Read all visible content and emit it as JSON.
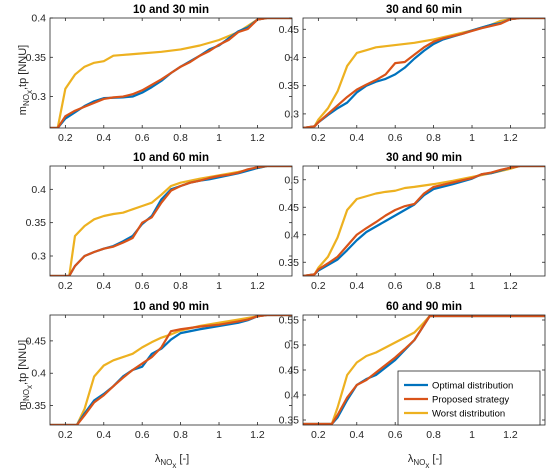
{
  "colors": {
    "optimal": "#0072BD",
    "proposed": "#D95319",
    "worst": "#EDB120"
  },
  "legend": {
    "placement": "bottom-right of panel 6",
    "entries": [
      {
        "key": "optimal",
        "label": "Optimal distribution"
      },
      {
        "key": "proposed",
        "label": "Proposed strategy"
      },
      {
        "key": "worst",
        "label": "Worst distribution"
      }
    ]
  },
  "ylabel": {
    "main": "m",
    "sub": "NO",
    "subsub": "x",
    "mid": ",tp",
    "unit": " [NNU]"
  },
  "xlabel": {
    "main": "λ",
    "sub": "NO",
    "subsub": "x",
    "unit": " [-]"
  },
  "chart_data": [
    {
      "type": "line",
      "title": "10 and 30 min",
      "xlim": [
        0.12,
        1.38
      ],
      "ylim": [
        0.26,
        0.4
      ],
      "xticks": [
        "0.2",
        "0.4",
        "0.6",
        "0.8",
        "1",
        "1.2"
      ],
      "xtick_values": [
        0.2,
        0.4,
        0.6,
        0.8,
        1,
        1.2
      ],
      "yticks": [
        "0.3",
        "0.35",
        "0.4"
      ],
      "ytick_values": [
        0.3,
        0.35,
        0.4
      ],
      "series": [
        {
          "key": "optimal",
          "x": [
            0.12,
            0.16,
            0.2,
            0.25,
            0.3,
            0.35,
            0.4,
            0.5,
            0.55,
            0.6,
            0.65,
            0.7,
            0.75,
            0.8,
            0.85,
            0.9,
            0.95,
            1.0,
            1.05,
            1.1,
            1.15,
            1.2,
            1.25,
            1.38
          ],
          "y": [
            0.26,
            0.26,
            0.272,
            0.28,
            0.288,
            0.294,
            0.298,
            0.299,
            0.3,
            0.305,
            0.312,
            0.32,
            0.33,
            0.338,
            0.345,
            0.352,
            0.36,
            0.365,
            0.374,
            0.383,
            0.388,
            0.398,
            0.4,
            0.4
          ]
        },
        {
          "key": "proposed",
          "x": [
            0.12,
            0.16,
            0.2,
            0.25,
            0.3,
            0.35,
            0.4,
            0.45,
            0.5,
            0.55,
            0.6,
            0.65,
            0.7,
            0.75,
            0.8,
            0.85,
            0.9,
            0.95,
            1.0,
            1.05,
            1.1,
            1.15,
            1.2,
            1.25,
            1.38
          ],
          "y": [
            0.26,
            0.26,
            0.275,
            0.282,
            0.287,
            0.292,
            0.297,
            0.299,
            0.3,
            0.303,
            0.308,
            0.315,
            0.322,
            0.33,
            0.338,
            0.344,
            0.352,
            0.358,
            0.366,
            0.372,
            0.382,
            0.386,
            0.398,
            0.4,
            0.4
          ]
        },
        {
          "key": "worst",
          "x": [
            0.12,
            0.16,
            0.2,
            0.25,
            0.3,
            0.35,
            0.4,
            0.45,
            0.5,
            0.6,
            0.7,
            0.8,
            0.9,
            1.0,
            1.1,
            1.2,
            1.25,
            1.38
          ],
          "y": [
            0.26,
            0.26,
            0.31,
            0.328,
            0.338,
            0.343,
            0.345,
            0.352,
            0.353,
            0.355,
            0.357,
            0.36,
            0.365,
            0.372,
            0.382,
            0.398,
            0.4,
            0.4
          ]
        }
      ]
    },
    {
      "type": "line",
      "title": "30 and 60 min",
      "xlim": [
        0.12,
        1.38
      ],
      "ylim": [
        0.275,
        0.47
      ],
      "xticks": [
        "0.2",
        "0.4",
        "0.6",
        "0.8",
        "1",
        "1.2"
      ],
      "xtick_values": [
        0.2,
        0.4,
        0.6,
        0.8,
        1,
        1.2
      ],
      "yticks": [
        "0.3",
        "0.35",
        "0.4",
        "0.45"
      ],
      "ytick_values": [
        0.3,
        0.35,
        0.4,
        0.45
      ],
      "series": [
        {
          "key": "optimal",
          "x": [
            0.12,
            0.18,
            0.2,
            0.25,
            0.3,
            0.35,
            0.4,
            0.45,
            0.5,
            0.55,
            0.6,
            0.65,
            0.7,
            0.75,
            0.8,
            0.85,
            0.9,
            0.95,
            1.0,
            1.05,
            1.1,
            1.15,
            1.2,
            1.25,
            1.38
          ],
          "y": [
            0.275,
            0.278,
            0.285,
            0.298,
            0.31,
            0.32,
            0.338,
            0.35,
            0.357,
            0.362,
            0.37,
            0.382,
            0.398,
            0.412,
            0.424,
            0.432,
            0.437,
            0.442,
            0.448,
            0.453,
            0.458,
            0.461,
            0.468,
            0.47,
            0.47
          ]
        },
        {
          "key": "proposed",
          "x": [
            0.12,
            0.18,
            0.2,
            0.25,
            0.3,
            0.35,
            0.4,
            0.45,
            0.5,
            0.55,
            0.6,
            0.65,
            0.7,
            0.75,
            0.8,
            0.85,
            0.9,
            0.95,
            1.0,
            1.05,
            1.1,
            1.15,
            1.2,
            1.25,
            1.38
          ],
          "y": [
            0.275,
            0.278,
            0.285,
            0.3,
            0.315,
            0.33,
            0.343,
            0.352,
            0.36,
            0.37,
            0.39,
            0.392,
            0.405,
            0.418,
            0.428,
            0.434,
            0.438,
            0.442,
            0.447,
            0.452,
            0.456,
            0.46,
            0.468,
            0.47,
            0.47
          ]
        },
        {
          "key": "worst",
          "x": [
            0.12,
            0.18,
            0.2,
            0.25,
            0.3,
            0.35,
            0.4,
            0.45,
            0.5,
            0.55,
            0.6,
            0.7,
            0.8,
            0.9,
            1.0,
            1.1,
            1.15,
            1.2,
            1.25,
            1.38
          ],
          "y": [
            0.275,
            0.278,
            0.29,
            0.31,
            0.34,
            0.385,
            0.408,
            0.413,
            0.418,
            0.42,
            0.422,
            0.426,
            0.432,
            0.44,
            0.448,
            0.458,
            0.465,
            0.468,
            0.47,
            0.47
          ]
        }
      ]
    },
    {
      "type": "line",
      "title": "10 and 60 min",
      "xlim": [
        0.12,
        1.38
      ],
      "ylim": [
        0.27,
        0.435
      ],
      "xticks": [
        "0.2",
        "0.4",
        "0.6",
        "0.8",
        "1",
        "1.2"
      ],
      "xtick_values": [
        0.2,
        0.4,
        0.6,
        0.8,
        1,
        1.2
      ],
      "yticks": [
        "0.3",
        "0.35",
        "0.4"
      ],
      "ytick_values": [
        0.3,
        0.35,
        0.4
      ],
      "series": [
        {
          "key": "optimal",
          "x": [
            0.12,
            0.22,
            0.25,
            0.3,
            0.35,
            0.4,
            0.45,
            0.5,
            0.55,
            0.6,
            0.65,
            0.7,
            0.75,
            0.8,
            0.85,
            0.9,
            0.95,
            1.0,
            1.05,
            1.1,
            1.15,
            1.2,
            1.25,
            1.38
          ],
          "y": [
            0.27,
            0.27,
            0.285,
            0.3,
            0.306,
            0.311,
            0.315,
            0.322,
            0.33,
            0.348,
            0.36,
            0.385,
            0.4,
            0.405,
            0.41,
            0.413,
            0.415,
            0.418,
            0.421,
            0.424,
            0.428,
            0.432,
            0.435,
            0.435
          ]
        },
        {
          "key": "proposed",
          "x": [
            0.12,
            0.22,
            0.25,
            0.3,
            0.35,
            0.4,
            0.45,
            0.5,
            0.55,
            0.6,
            0.65,
            0.7,
            0.75,
            0.8,
            0.85,
            0.9,
            0.95,
            1.0,
            1.05,
            1.1,
            1.15,
            1.2,
            1.25,
            1.38
          ],
          "y": [
            0.27,
            0.27,
            0.285,
            0.3,
            0.306,
            0.311,
            0.314,
            0.32,
            0.327,
            0.35,
            0.358,
            0.38,
            0.398,
            0.405,
            0.41,
            0.413,
            0.417,
            0.42,
            0.422,
            0.425,
            0.43,
            0.433,
            0.435,
            0.435
          ]
        },
        {
          "key": "worst",
          "x": [
            0.12,
            0.22,
            0.25,
            0.3,
            0.35,
            0.4,
            0.45,
            0.5,
            0.55,
            0.6,
            0.65,
            0.7,
            0.75,
            0.8,
            0.9,
            1.0,
            1.1,
            1.2,
            1.25,
            1.38
          ],
          "y": [
            0.27,
            0.27,
            0.33,
            0.345,
            0.355,
            0.36,
            0.363,
            0.365,
            0.37,
            0.375,
            0.38,
            0.392,
            0.405,
            0.41,
            0.416,
            0.421,
            0.426,
            0.432,
            0.435,
            0.435
          ]
        }
      ]
    },
    {
      "type": "line",
      "title": "30 and 90 min",
      "xlim": [
        0.12,
        1.38
      ],
      "ylim": [
        0.325,
        0.525
      ],
      "xticks": [
        "0.2",
        "0.4",
        "0.6",
        "0.8",
        "1",
        "1.2"
      ],
      "xtick_values": [
        0.2,
        0.4,
        0.6,
        0.8,
        1,
        1.2
      ],
      "yticks": [
        "0.35",
        "0.4",
        "0.45",
        "0.5"
      ],
      "ytick_values": [
        0.35,
        0.4,
        0.45,
        0.5
      ],
      "series": [
        {
          "key": "optimal",
          "x": [
            0.12,
            0.18,
            0.2,
            0.25,
            0.3,
            0.35,
            0.4,
            0.45,
            0.5,
            0.55,
            0.6,
            0.65,
            0.7,
            0.75,
            0.8,
            0.9,
            1.0,
            1.05,
            1.1,
            1.15,
            1.2,
            1.25,
            1.38
          ],
          "y": [
            0.325,
            0.328,
            0.335,
            0.345,
            0.355,
            0.372,
            0.39,
            0.405,
            0.415,
            0.425,
            0.435,
            0.445,
            0.455,
            0.472,
            0.483,
            0.492,
            0.502,
            0.51,
            0.512,
            0.517,
            0.522,
            0.525,
            0.525
          ]
        },
        {
          "key": "proposed",
          "x": [
            0.12,
            0.18,
            0.2,
            0.25,
            0.3,
            0.35,
            0.4,
            0.45,
            0.5,
            0.55,
            0.6,
            0.65,
            0.7,
            0.75,
            0.8,
            0.9,
            1.0,
            1.05,
            1.1,
            1.15,
            1.2,
            1.25,
            1.38
          ],
          "y": [
            0.325,
            0.328,
            0.337,
            0.348,
            0.36,
            0.38,
            0.4,
            0.412,
            0.423,
            0.435,
            0.445,
            0.452,
            0.456,
            0.475,
            0.487,
            0.495,
            0.503,
            0.51,
            0.513,
            0.518,
            0.522,
            0.525,
            0.525
          ]
        },
        {
          "key": "worst",
          "x": [
            0.12,
            0.18,
            0.2,
            0.25,
            0.3,
            0.35,
            0.4,
            0.45,
            0.5,
            0.55,
            0.6,
            0.65,
            0.7,
            0.8,
            0.9,
            1.0,
            1.1,
            1.2,
            1.25,
            1.38
          ],
          "y": [
            0.325,
            0.328,
            0.34,
            0.36,
            0.395,
            0.445,
            0.465,
            0.47,
            0.475,
            0.478,
            0.48,
            0.485,
            0.487,
            0.492,
            0.498,
            0.505,
            0.512,
            0.52,
            0.525,
            0.525
          ]
        }
      ]
    },
    {
      "type": "line",
      "title": "10 and 90 min",
      "xlim": [
        0.12,
        1.38
      ],
      "ylim": [
        0.32,
        0.49
      ],
      "xticks": [
        "0.2",
        "0.4",
        "0.6",
        "0.8",
        "1",
        "1.2"
      ],
      "xtick_values": [
        0.2,
        0.4,
        0.6,
        0.8,
        1,
        1.2
      ],
      "yticks": [
        "0.35",
        "0.4",
        "0.45"
      ],
      "ytick_values": [
        0.35,
        0.4,
        0.45
      ],
      "series": [
        {
          "key": "optimal",
          "x": [
            0.12,
            0.26,
            0.3,
            0.35,
            0.4,
            0.45,
            0.5,
            0.55,
            0.6,
            0.65,
            0.7,
            0.75,
            0.8,
            0.9,
            1.0,
            1.1,
            1.15,
            1.2,
            1.25,
            1.38
          ],
          "y": [
            0.32,
            0.32,
            0.338,
            0.358,
            0.368,
            0.38,
            0.395,
            0.405,
            0.41,
            0.43,
            0.438,
            0.452,
            0.462,
            0.468,
            0.473,
            0.478,
            0.482,
            0.488,
            0.49,
            0.49
          ]
        },
        {
          "key": "proposed",
          "x": [
            0.12,
            0.26,
            0.3,
            0.35,
            0.4,
            0.45,
            0.5,
            0.55,
            0.6,
            0.65,
            0.7,
            0.75,
            0.8,
            0.9,
            1.0,
            1.1,
            1.15,
            1.2,
            1.25,
            1.38
          ],
          "y": [
            0.32,
            0.32,
            0.335,
            0.355,
            0.366,
            0.38,
            0.393,
            0.405,
            0.415,
            0.425,
            0.44,
            0.465,
            0.468,
            0.472,
            0.475,
            0.48,
            0.483,
            0.488,
            0.49,
            0.49
          ]
        },
        {
          "key": "worst",
          "x": [
            0.12,
            0.26,
            0.3,
            0.35,
            0.4,
            0.45,
            0.5,
            0.55,
            0.6,
            0.65,
            0.7,
            0.75,
            0.8,
            0.9,
            1.0,
            1.1,
            1.2,
            1.25,
            1.38
          ],
          "y": [
            0.32,
            0.32,
            0.345,
            0.395,
            0.412,
            0.42,
            0.425,
            0.43,
            0.44,
            0.448,
            0.455,
            0.46,
            0.466,
            0.473,
            0.478,
            0.483,
            0.488,
            0.49,
            0.49
          ]
        }
      ]
    },
    {
      "type": "line",
      "title": "60 and 90 min",
      "xlim": [
        0.12,
        1.38
      ],
      "ylim": [
        0.34,
        0.56
      ],
      "xticks": [
        "0.2",
        "0.4",
        "0.6",
        "0.8",
        "1",
        "1.2"
      ],
      "xtick_values": [
        0.2,
        0.4,
        0.6,
        0.8,
        1,
        1.2
      ],
      "yticks": [
        "0.35",
        "0.4",
        "0.45",
        "0.5",
        "0.55"
      ],
      "ytick_values": [
        0.35,
        0.4,
        0.45,
        0.5,
        0.55
      ],
      "series": [
        {
          "key": "optimal",
          "x": [
            0.12,
            0.27,
            0.3,
            0.35,
            0.4,
            0.45,
            0.5,
            0.55,
            0.6,
            0.65,
            0.7,
            0.75,
            0.78,
            1.38
          ],
          "y": [
            0.342,
            0.342,
            0.355,
            0.39,
            0.42,
            0.432,
            0.44,
            0.455,
            0.47,
            0.49,
            0.51,
            0.54,
            0.558,
            0.558
          ]
        },
        {
          "key": "proposed",
          "x": [
            0.12,
            0.27,
            0.3,
            0.35,
            0.4,
            0.45,
            0.5,
            0.55,
            0.6,
            0.65,
            0.7,
            0.75,
            0.78,
            1.38
          ],
          "y": [
            0.342,
            0.342,
            0.36,
            0.395,
            0.42,
            0.43,
            0.445,
            0.46,
            0.475,
            0.492,
            0.51,
            0.54,
            0.558,
            0.558
          ]
        },
        {
          "key": "worst",
          "x": [
            0.12,
            0.27,
            0.3,
            0.35,
            0.4,
            0.45,
            0.5,
            0.55,
            0.6,
            0.65,
            0.7,
            0.75,
            0.78,
            1.38
          ],
          "y": [
            0.342,
            0.342,
            0.375,
            0.44,
            0.465,
            0.478,
            0.485,
            0.495,
            0.505,
            0.515,
            0.525,
            0.545,
            0.558,
            0.558
          ]
        }
      ]
    }
  ]
}
